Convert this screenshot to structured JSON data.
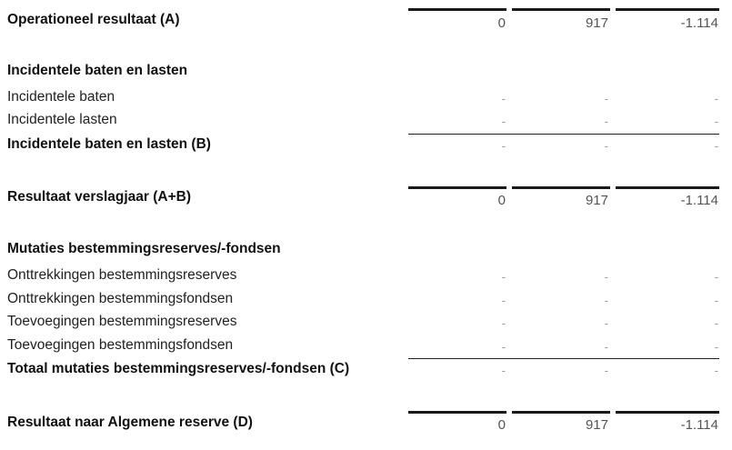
{
  "rows": {
    "operationeel": {
      "label": "Operationeel resultaat (A)",
      "v1": "0",
      "v2": "917",
      "v3": "-1.114"
    },
    "incidenteel_header": {
      "label": "Incidentele baten en lasten"
    },
    "incidentele_baten": {
      "label": "Incidentele baten",
      "v1": "-",
      "v2": "-",
      "v3": "-"
    },
    "incidentele_lasten": {
      "label": "Incidentele lasten",
      "v1": "-",
      "v2": "-",
      "v3": "-"
    },
    "incidenteel_totaal": {
      "label": "Incidentele baten en lasten (B)",
      "v1": "-",
      "v2": "-",
      "v3": "-"
    },
    "resultaat_verslagjaar": {
      "label": "Resultaat verslagjaar (A+B)",
      "v1": "0",
      "v2": "917",
      "v3": "-1.114"
    },
    "mutaties_header": {
      "label": "Mutaties bestemmingsreserves/-fondsen"
    },
    "onttrekkingen_reserves": {
      "label": "Onttrekkingen bestemmingsreserves",
      "v1": "-",
      "v2": "-",
      "v3": "-"
    },
    "onttrekkingen_fondsen": {
      "label": "Onttrekkingen bestemmingsfondsen",
      "v1": "-",
      "v2": "-",
      "v3": "-"
    },
    "toevoegingen_reserves": {
      "label": "Toevoegingen bestemmingsreserves",
      "v1": "-",
      "v2": "-",
      "v3": "-"
    },
    "toevoegingen_fondsen": {
      "label": "Toevoegingen bestemmingsfondsen",
      "v1": "-",
      "v2": "-",
      "v3": "-"
    },
    "mutaties_totaal": {
      "label": "Totaal mutaties bestemmingsreserves/-fondsen (C)",
      "v1": "-",
      "v2": "-",
      "v3": "-"
    },
    "resultaat_algemene_reserve": {
      "label": "Resultaat naar Algemene reserve (D)",
      "v1": "0",
      "v2": "917",
      "v3": "-1.114"
    }
  }
}
